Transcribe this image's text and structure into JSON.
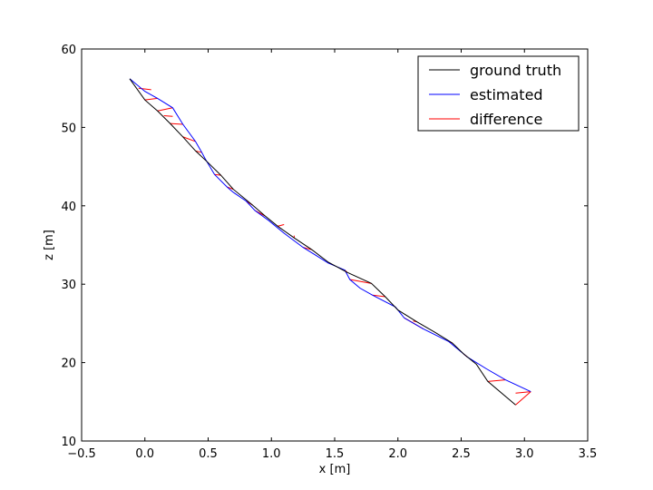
{
  "chart_data": {
    "type": "line",
    "xlabel": "x [m]",
    "ylabel": "z [m]",
    "xlim": [
      -0.5,
      3.5
    ],
    "ylim": [
      10,
      60
    ],
    "xticks": [
      -0.5,
      0.0,
      0.5,
      1.0,
      1.5,
      2.0,
      2.5,
      3.0,
      3.5
    ],
    "xtick_labels": [
      "−0.5",
      "0.0",
      "0.5",
      "1.0",
      "1.5",
      "2.0",
      "2.5",
      "3.0",
      "3.5"
    ],
    "yticks": [
      10,
      20,
      30,
      40,
      50,
      60
    ],
    "ytick_labels": [
      "10",
      "20",
      "30",
      "40",
      "50",
      "60"
    ],
    "grid": false,
    "legend_position": "top-right",
    "series": [
      {
        "name": "ground truth",
        "color": "#000000",
        "x": [
          2.93,
          2.71,
          2.62,
          2.52,
          2.43,
          2.3,
          2.15,
          2.0,
          1.9,
          1.79,
          1.6,
          1.45,
          1.32,
          1.18,
          1.05,
          0.95,
          0.85,
          0.7,
          0.6,
          0.5,
          0.4,
          0.3,
          0.2,
          0.1,
          0.0,
          -0.12
        ],
        "y": [
          14.6,
          17.6,
          19.8,
          21.1,
          22.5,
          23.8,
          25.2,
          26.7,
          28.4,
          30.1,
          31.5,
          32.8,
          34.4,
          35.9,
          37.4,
          38.7,
          40.1,
          42.1,
          43.9,
          45.5,
          47.0,
          48.8,
          50.5,
          52.1,
          53.5,
          56.2
        ]
      },
      {
        "name": "estimated",
        "color": "#0000ff",
        "x": [
          3.05,
          2.85,
          2.7,
          2.55,
          2.4,
          2.2,
          2.05,
          1.98,
          1.8,
          1.7,
          1.62,
          1.58,
          1.45,
          1.25,
          1.1,
          0.98,
          0.87,
          0.8,
          0.7,
          0.65,
          0.55,
          0.48,
          0.45,
          0.4,
          0.3,
          0.22,
          0.1,
          0.0,
          -0.12
        ],
        "y": [
          16.3,
          17.8,
          19.2,
          20.7,
          22.7,
          24.3,
          25.7,
          27.1,
          28.6,
          29.5,
          30.6,
          31.8,
          32.7,
          34.7,
          36.5,
          38.1,
          39.4,
          40.6,
          41.7,
          42.4,
          44.0,
          45.9,
          46.8,
          48.2,
          50.4,
          52.5,
          53.7,
          54.6,
          56.2
        ]
      },
      {
        "name": "difference",
        "color": "#ff0000",
        "segments": [
          [
            [
              2.93,
              14.6
            ],
            [
              3.05,
              16.3
            ]
          ],
          [
            [
              2.93,
              16.1
            ],
            [
              3.05,
              16.3
            ]
          ],
          [
            [
              2.71,
              17.6
            ],
            [
              2.85,
              17.8
            ]
          ],
          [
            [
              2.52,
              21.1
            ],
            [
              2.55,
              20.7
            ]
          ],
          [
            [
              2.43,
              22.5
            ],
            [
              2.4,
              22.7
            ]
          ],
          [
            [
              2.15,
              25.2
            ],
            [
              2.12,
              25.3
            ]
          ],
          [
            [
              2.05,
              25.7
            ],
            [
              2.2,
              24.3
            ]
          ],
          [
            [
              1.9,
              28.4
            ],
            [
              1.8,
              28.6
            ]
          ],
          [
            [
              1.79,
              30.1
            ],
            [
              1.62,
              30.6
            ]
          ],
          [
            [
              1.6,
              31.5
            ],
            [
              1.58,
              31.8
            ]
          ],
          [
            [
              1.45,
              32.8
            ],
            [
              1.45,
              32.7
            ]
          ],
          [
            [
              1.32,
              34.4
            ],
            [
              1.25,
              34.7
            ]
          ],
          [
            [
              1.18,
              35.9
            ],
            [
              1.18,
              36.2
            ]
          ],
          [
            [
              1.05,
              37.4
            ],
            [
              1.1,
              37.6
            ]
          ],
          [
            [
              0.95,
              38.7
            ],
            [
              0.87,
              39.4
            ]
          ],
          [
            [
              0.85,
              40.1
            ],
            [
              0.8,
              40.6
            ]
          ],
          [
            [
              0.7,
              42.1
            ],
            [
              0.65,
              42.4
            ]
          ],
          [
            [
              0.6,
              43.9
            ],
            [
              0.55,
              44.0
            ]
          ],
          [
            [
              0.4,
              47.0
            ],
            [
              0.45,
              46.8
            ]
          ],
          [
            [
              0.3,
              48.8
            ],
            [
              0.4,
              48.2
            ]
          ],
          [
            [
              0.2,
              50.5
            ],
            [
              0.3,
              50.4
            ]
          ],
          [
            [
              0.1,
              52.1
            ],
            [
              0.22,
              52.5
            ]
          ],
          [
            [
              0.0,
              53.5
            ],
            [
              0.1,
              53.7
            ]
          ],
          [
            [
              0.22,
              51.4
            ],
            [
              0.15,
              51.5
            ]
          ],
          [
            [
              -0.05,
              55.0
            ],
            [
              0.05,
              54.8
            ]
          ]
        ]
      }
    ]
  }
}
